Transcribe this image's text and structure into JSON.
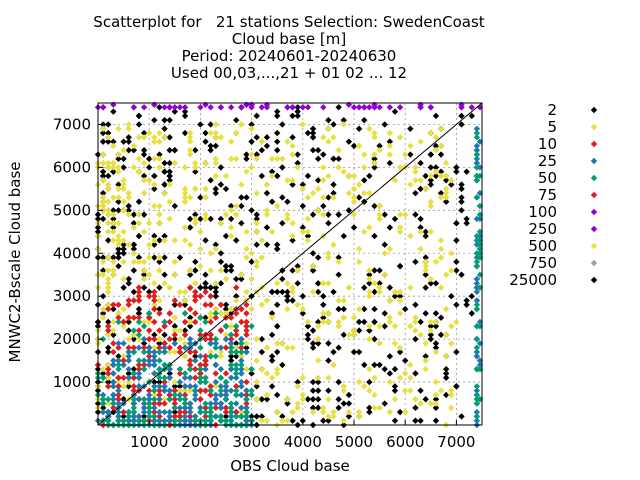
{
  "chart_data": {
    "type": "scatter",
    "title_lines": [
      "Scatterplot for   21 stations Selection: SwedenCoast",
      "Cloud base [m]",
      "Period: 20240601-20240630",
      "Used 00,03,...,21 + 01 02 ... 12"
    ],
    "xlabel": "OBS Cloud base",
    "ylabel": "MNWC2-Bscale Cloud base",
    "xlim": [
      0,
      7500
    ],
    "ylim": [
      0,
      7500
    ],
    "x_ticks": [
      1000,
      2000,
      3000,
      4000,
      5000,
      6000,
      7000
    ],
    "y_ticks": [
      1000,
      2000,
      3000,
      4000,
      5000,
      6000,
      7000
    ],
    "x_tick_labels": [
      "1000",
      "2000",
      "3000",
      "4000",
      "5000",
      "6000",
      "7000"
    ],
    "y_tick_labels": [
      "1000",
      "2000",
      "3000",
      "4000",
      "5000",
      "6000",
      "7000"
    ],
    "grid": true,
    "diagonal": true,
    "legend_position": "right",
    "legend": [
      {
        "label": "2",
        "color": "#000000"
      },
      {
        "label": "5",
        "color": "#e8e03c"
      },
      {
        "label": "10",
        "color": "#e41a1c"
      },
      {
        "label": "25",
        "color": "#1f78b4"
      },
      {
        "label": "50",
        "color": "#009e73"
      },
      {
        "label": "75",
        "color": "#e41a1c"
      },
      {
        "label": "100",
        "color": "#9400d3"
      },
      {
        "label": "250",
        "color": "#9400d3"
      },
      {
        "label": "500",
        "color": "#e8e03c"
      },
      {
        "label": "750",
        "color": "#a0a0a0"
      },
      {
        "label": "25000",
        "color": "#000000"
      }
    ],
    "point_groups": [
      {
        "color": "#000000",
        "x_range": [
          0,
          7400
        ],
        "y_range": [
          0,
          7450
        ],
        "count": 700,
        "bias": "spread"
      },
      {
        "color": "#e8e03c",
        "x_range": [
          0,
          7000
        ],
        "y_range": [
          0,
          7000
        ],
        "count": 650,
        "bias": "spread"
      },
      {
        "color": "#e41a1c",
        "x_range": [
          0,
          3000
        ],
        "y_range": [
          0,
          3200
        ],
        "count": 320,
        "bias": "low"
      },
      {
        "color": "#1f78b4",
        "x_range": [
          0,
          3000
        ],
        "y_range": [
          0,
          2000
        ],
        "count": 260,
        "bias": "low"
      },
      {
        "color": "#009e73",
        "x_range": [
          0,
          3000
        ],
        "y_range": [
          0,
          2600
        ],
        "count": 180,
        "bias": "low"
      },
      {
        "color": "#9400d3",
        "x_range": [
          0,
          7500
        ],
        "y_range": [
          7350,
          7500
        ],
        "count": 60,
        "bias": "top"
      },
      {
        "color": "#1f78b4",
        "x_range": [
          7350,
          7500
        ],
        "y_range": [
          0,
          7000
        ],
        "count": 50,
        "bias": "right"
      },
      {
        "color": "#009e73",
        "x_range": [
          7350,
          7500
        ],
        "y_range": [
          0,
          7000
        ],
        "count": 40,
        "bias": "right"
      }
    ]
  }
}
